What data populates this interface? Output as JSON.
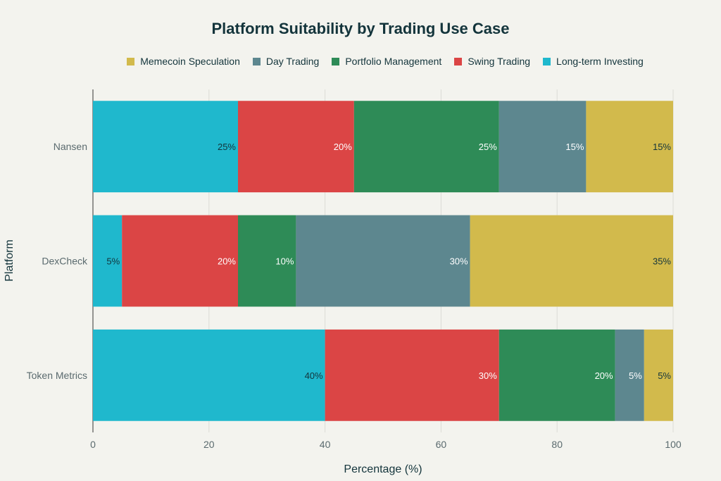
{
  "chart_data": {
    "type": "bar",
    "orientation": "horizontal",
    "stacked": true,
    "title": "Platform Suitability by Trading Use Case",
    "xlabel": "Percentage (%)",
    "ylabel": "Platform",
    "xlim": [
      0,
      100
    ],
    "xticks": [
      0,
      20,
      40,
      60,
      80,
      100
    ],
    "grid": true,
    "legend_position": "top",
    "categories": [
      "Nansen",
      "DexCheck",
      "Token Metrics"
    ],
    "series": [
      {
        "name": "Long-term Investing",
        "color": "#1FB8CD",
        "label_color": "#13343B",
        "values": [
          25,
          5,
          40
        ]
      },
      {
        "name": "Swing Trading",
        "color": "#DB4545",
        "label_color": "#FFFFFF",
        "values": [
          20,
          20,
          30
        ]
      },
      {
        "name": "Portfolio Management",
        "color": "#2E8B57",
        "label_color": "#FFFFFF",
        "values": [
          25,
          10,
          20
        ]
      },
      {
        "name": "Day Trading",
        "color": "#5D878F",
        "label_color": "#FFFFFF",
        "values": [
          15,
          30,
          5
        ]
      },
      {
        "name": "Memecoin Speculation",
        "color": "#D2BA4C",
        "label_color": "#13343B",
        "values": [
          15,
          35,
          5
        ]
      }
    ],
    "legend_order": [
      "Memecoin Speculation",
      "Day Trading",
      "Portfolio Management",
      "Swing Trading",
      "Long-term Investing"
    ]
  }
}
